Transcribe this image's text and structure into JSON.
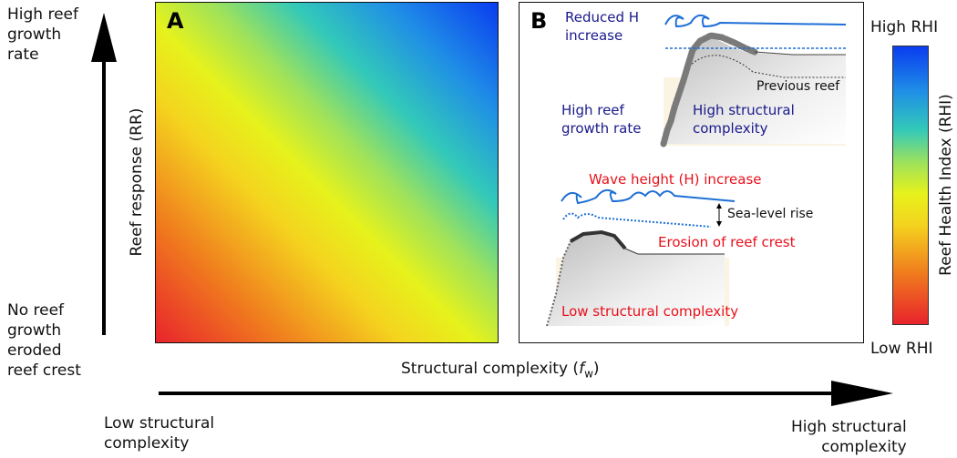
{
  "panel_a": {
    "letter": "A"
  },
  "panel_b": {
    "letter": "B",
    "reduced_h": "Reduced H",
    "reduced_h_line2": "increase",
    "previous_reef": "Previous reef",
    "high_growth_line1": "High reef",
    "high_growth_line2": "growth rate",
    "high_complexity_line1": "High structural",
    "high_complexity_line2": "complexity",
    "wave_height": "Wave height (H) increase",
    "sea_level": "Sea-level rise",
    "erosion": "Erosion of reef crest",
    "low_complexity": "Low structural complexity"
  },
  "left_axis": {
    "top_label": [
      "High reef",
      "growth",
      "rate"
    ],
    "bottom_label": [
      "No reef",
      "growth",
      "eroded",
      "reef crest"
    ],
    "title": "Reef response (RR)"
  },
  "bottom_axis": {
    "title_main": "Structural complexity (",
    "title_f": "f",
    "title_sub": "w",
    "title_close": ")",
    "left_label": [
      "Low structural",
      "complexity"
    ],
    "right_label": [
      "High structural",
      "complexity"
    ]
  },
  "colorbar": {
    "high": "High RHI",
    "low": "Low RHI",
    "title": "Reef Health Index (RHI)"
  },
  "colors": {
    "low": "#e8232c",
    "mid": "#e6f21c",
    "high": "#0a3cf0",
    "label_blue": "#1a1a8c",
    "label_red": "#e8111b",
    "wave": "#1f6fd6"
  }
}
